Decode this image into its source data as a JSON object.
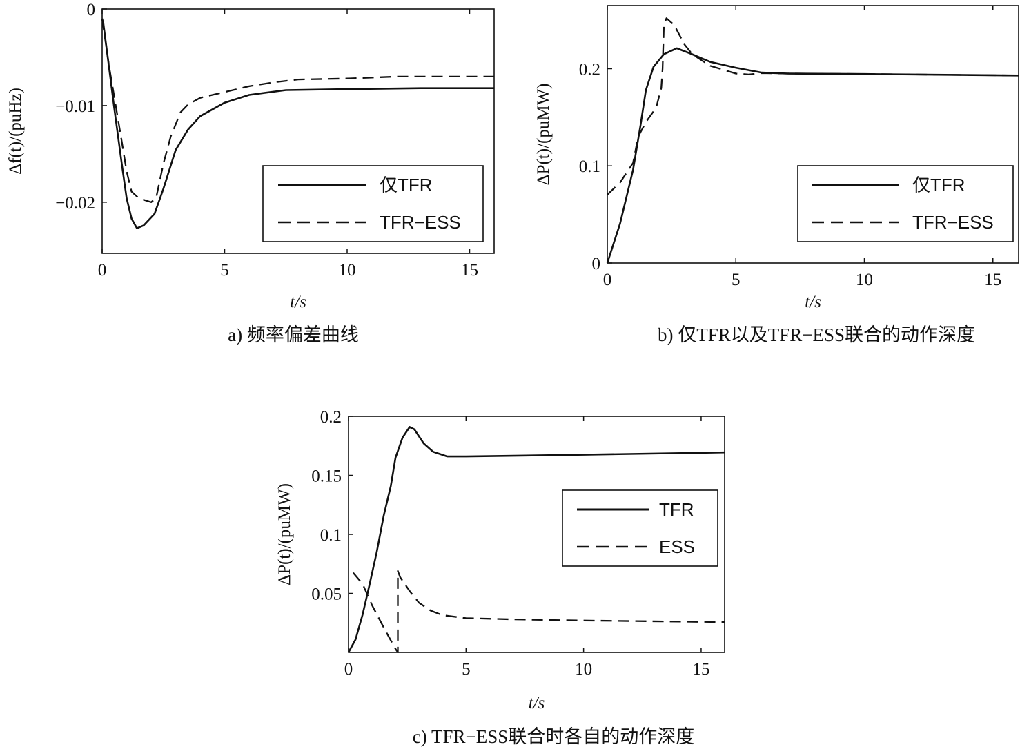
{
  "chart_data": [
    {
      "id": "a",
      "type": "line",
      "caption": "a) 频率偏差曲线",
      "xlabel": "t/s",
      "ylabel": "Δf(t)/(puHz)",
      "xlim": [
        0,
        16
      ],
      "ylim": [
        -0.0253,
        0
      ],
      "xticks": [
        0,
        5,
        10,
        15
      ],
      "xtick_labels": [
        "0",
        "5",
        "10",
        "15"
      ],
      "yticks": [
        0,
        -0.01,
        -0.02
      ],
      "ytick_labels": [
        "0",
        "−0.01",
        "−0.02"
      ],
      "legend_position": "lower-right",
      "series": [
        {
          "name": "仅TFR",
          "style": "solid",
          "x": [
            0,
            0.05,
            0.5,
            0.8,
            1.0,
            1.2,
            1.42,
            1.7,
            2.14,
            2.5,
            3.0,
            3.5,
            4.0,
            5.0,
            6.0,
            7.5,
            10,
            13,
            16
          ],
          "y": [
            -0.001,
            -0.0015,
            -0.0104,
            -0.016,
            -0.0196,
            -0.0217,
            -0.0227,
            -0.0224,
            -0.0212,
            -0.0186,
            -0.0146,
            -0.0125,
            -0.0111,
            -0.0097,
            -0.0089,
            -0.0084,
            -0.0083,
            -0.0082,
            -0.0082
          ]
        },
        {
          "name": "TFR−ESS",
          "style": "dashed",
          "x": [
            0,
            0.3,
            0.5,
            0.8,
            1.0,
            1.2,
            1.5,
            2.0,
            2.2,
            2.5,
            2.8,
            3.2,
            3.5,
            4.0,
            5.0,
            6.0,
            7.0,
            8.0,
            10,
            12,
            16
          ],
          "y": [
            -0.001,
            -0.0062,
            -0.0092,
            -0.0137,
            -0.0168,
            -0.0189,
            -0.0196,
            -0.02,
            -0.0196,
            -0.016,
            -0.0132,
            -0.0107,
            -0.0099,
            -0.0092,
            -0.0086,
            -0.008,
            -0.0076,
            -0.0073,
            -0.0072,
            -0.007,
            -0.007
          ]
        }
      ]
    },
    {
      "id": "b",
      "type": "line",
      "caption": "b) 仅TFR以及TFR−ESS联合的动作深度",
      "xlabel": "t/s",
      "ylabel": "ΔP(t)/(puMW)",
      "xlim": [
        0,
        16
      ],
      "ylim": [
        0,
        0.265
      ],
      "xticks": [
        0,
        5,
        10,
        15
      ],
      "xtick_labels": [
        "0",
        "5",
        "10",
        "15"
      ],
      "yticks": [
        0,
        0.1,
        0.2
      ],
      "ytick_labels": [
        "0",
        "0.1",
        "0.2"
      ],
      "legend_position": "lower-right",
      "series": [
        {
          "name": "仅TFR",
          "style": "solid",
          "x": [
            0,
            0.5,
            1.0,
            1.3,
            1.5,
            1.8,
            2.2,
            2.7,
            3.2,
            4.0,
            5.0,
            6.0,
            7.0,
            10,
            16
          ],
          "y": [
            0,
            0.041,
            0.096,
            0.143,
            0.178,
            0.202,
            0.215,
            0.221,
            0.216,
            0.207,
            0.201,
            0.196,
            0.195,
            0.1945,
            0.193
          ]
        },
        {
          "name": "TFR−ESS",
          "style": "dashed",
          "x": [
            0,
            0.5,
            1.0,
            1.2,
            1.5,
            1.9,
            2.1,
            2.15,
            2.2,
            2.3,
            2.6,
            3.0,
            3.3,
            4.0,
            5.0,
            5.5,
            6.0,
            7.0,
            10,
            16
          ],
          "y": [
            0.0703,
            0.083,
            0.103,
            0.13,
            0.145,
            0.16,
            0.18,
            0.2,
            0.245,
            0.252,
            0.245,
            0.225,
            0.215,
            0.203,
            0.195,
            0.194,
            0.1955,
            0.195,
            0.1945,
            0.193
          ]
        }
      ]
    },
    {
      "id": "c",
      "type": "line",
      "caption": "c) TFR−ESS联合时各自的动作深度",
      "xlabel": "t/s",
      "ylabel": "ΔP(t)/(puMW)",
      "xlim": [
        0,
        16
      ],
      "ylim": [
        0,
        0.2
      ],
      "xticks": [
        0,
        5,
        10,
        15
      ],
      "xtick_labels": [
        "0",
        "5",
        "10",
        "15"
      ],
      "yticks": [
        0.2,
        0.15,
        0.1,
        0.05
      ],
      "ytick_labels": [
        "0.2",
        "0.15",
        "0.1",
        "0.05"
      ],
      "legend_position": "center-right",
      "series": [
        {
          "name": "TFR",
          "style": "solid",
          "x": [
            0,
            0.3,
            0.6,
            0.9,
            1.2,
            1.5,
            1.8,
            2.0,
            2.3,
            2.6,
            2.8,
            3.2,
            3.6,
            4.2,
            5.0,
            10,
            16
          ],
          "y": [
            0,
            0.011,
            0.032,
            0.058,
            0.085,
            0.116,
            0.141,
            0.165,
            0.182,
            0.191,
            0.189,
            0.177,
            0.17,
            0.166,
            0.166,
            0.1675,
            0.1695
          ]
        },
        {
          "name": "ESS",
          "style": "dashed",
          "x": [
            0.2,
            0.6,
            1.0,
            1.5,
            2.0,
            2.1,
            2.1,
            2.2,
            2.6,
            3.0,
            3.5,
            4.0,
            5.0,
            7.0,
            10,
            16
          ],
          "y": [
            0.0675,
            0.058,
            0.04,
            0.021,
            0.003,
            0,
            0.069,
            0.0636,
            0.052,
            0.042,
            0.0354,
            0.0315,
            0.029,
            0.028,
            0.027,
            0.0257
          ]
        }
      ]
    }
  ]
}
